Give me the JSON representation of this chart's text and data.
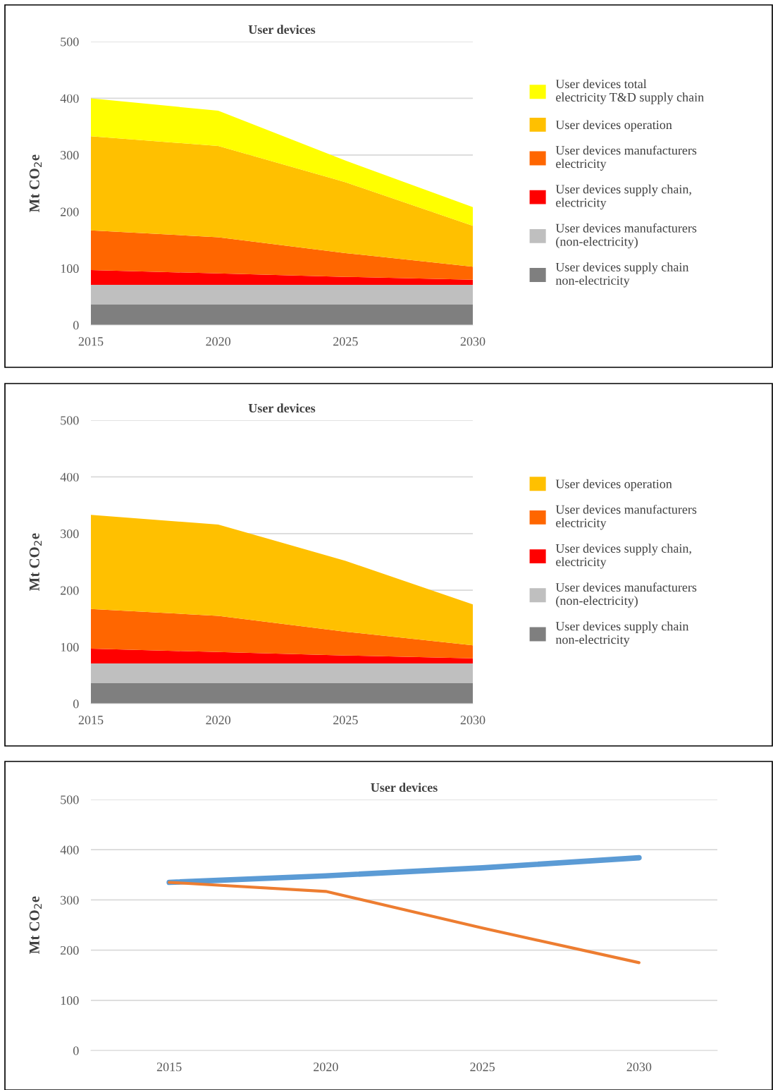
{
  "chart_data": [
    {
      "type": "area",
      "title": "User devices",
      "ylabel": "Mt CO$_{2}$e",
      "stacked": true,
      "x": [
        2015,
        2020,
        2025,
        2030
      ],
      "xlim": [
        2015,
        2030
      ],
      "xticks": [
        2015,
        2020,
        2025,
        2030
      ],
      "ylim": [
        0,
        500
      ],
      "yticks": [
        0,
        100,
        200,
        300,
        400,
        500
      ],
      "grid": "y",
      "legend": "right",
      "series": [
        {
          "name": "User devices supply chain\nnon-electricity",
          "color": "#7f7f7f",
          "values": [
            36,
            36,
            36,
            36
          ]
        },
        {
          "name": "User devices manufacturers\n(non-electricity)",
          "color": "#bfbfbf",
          "values": [
            35,
            35,
            35,
            35
          ]
        },
        {
          "name": "User devices supply chain,\nelectricity",
          "color": "#ff0000",
          "values": [
            26,
            20,
            14,
            9
          ]
        },
        {
          "name": "User devices manufacturers\nelectricity",
          "color": "#ff6600",
          "values": [
            70,
            64,
            42,
            23
          ]
        },
        {
          "name": "User devices operation",
          "color": "#ffc000",
          "values": [
            166,
            161,
            125,
            72
          ]
        },
        {
          "name": "User devices total\nelectricity T&D supply chain",
          "color": "#ffff00",
          "values": [
            67,
            62,
            38,
            33
          ]
        }
      ]
    },
    {
      "type": "area",
      "title": "User devices",
      "ylabel": "Mt CO$_{2}$e",
      "stacked": true,
      "x": [
        2015,
        2020,
        2025,
        2030
      ],
      "xlim": [
        2015,
        2030
      ],
      "xticks": [
        2015,
        2020,
        2025,
        2030
      ],
      "ylim": [
        0,
        500
      ],
      "yticks": [
        0,
        100,
        200,
        300,
        400,
        500
      ],
      "grid": "y",
      "legend": "right",
      "series": [
        {
          "name": "User devices supply chain\nnon-electricity",
          "color": "#7f7f7f",
          "values": [
            36,
            36,
            36,
            36
          ]
        },
        {
          "name": "User devices manufacturers\n(non-electricity)",
          "color": "#bfbfbf",
          "values": [
            35,
            35,
            35,
            35
          ]
        },
        {
          "name": "User devices supply chain,\nelectricity",
          "color": "#ff0000",
          "values": [
            26,
            20,
            14,
            9
          ]
        },
        {
          "name": "User devices manufacturers\nelectricity",
          "color": "#ff6600",
          "values": [
            70,
            64,
            42,
            23
          ]
        },
        {
          "name": "User devices operation",
          "color": "#ffc000",
          "values": [
            166,
            161,
            125,
            72
          ]
        }
      ]
    },
    {
      "type": "line",
      "title": "User devices",
      "ylabel": "Mt CO$_{2}$e",
      "categories": [
        "2015",
        "2020",
        "2025",
        "2030"
      ],
      "ylim": [
        0,
        500
      ],
      "yticks": [
        0,
        100,
        200,
        300,
        400,
        500
      ],
      "grid": "y",
      "series": [
        {
          "color": "#5b9bd5",
          "values": [
            335,
            348,
            364,
            384
          ]
        },
        {
          "color": "#ed7d31",
          "values": [
            335,
            317,
            244,
            175
          ]
        }
      ]
    }
  ]
}
